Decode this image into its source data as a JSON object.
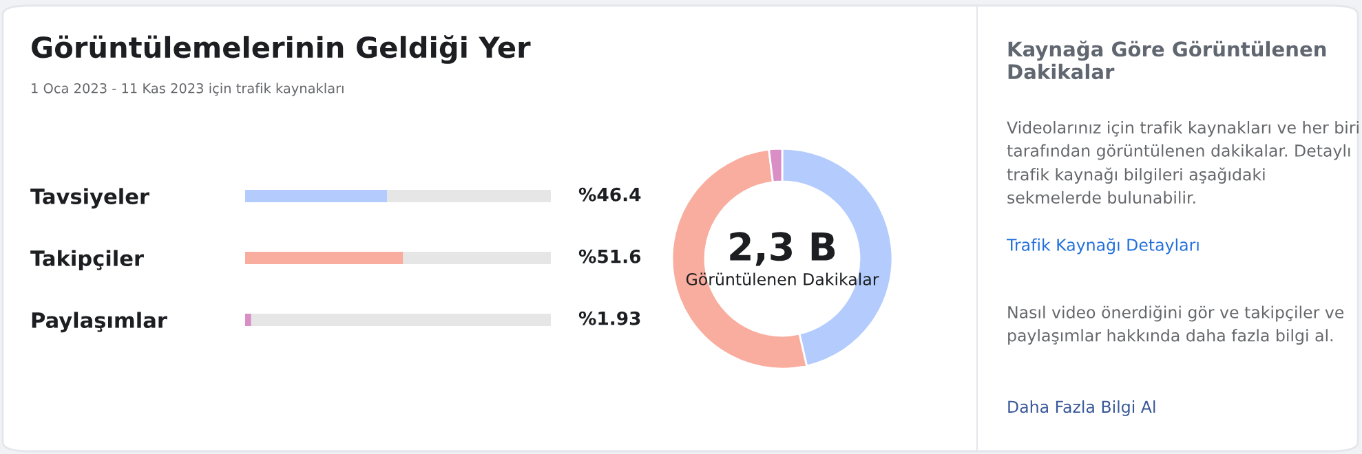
{
  "chart_data": [
    {
      "type": "bar",
      "orientation": "horizontal",
      "title": "Görüntülemelerinin Geldiği Yer",
      "subtitle": "1 Oca 2023 - 11 Kas 2023 için trafik kaynakları",
      "categories": [
        "Tavsiyeler",
        "Takipçiler",
        "Paylaşımlar"
      ],
      "values": [
        46.4,
        51.6,
        1.93
      ],
      "colors": [
        "#b3cbfd",
        "#f9ad9f",
        "#d98fc6"
      ],
      "value_labels": [
        "%46.4",
        "%51.6",
        "%1.93"
      ],
      "xlim": [
        0,
        100
      ],
      "tick_labels": "y",
      "grid": false,
      "legend": false
    },
    {
      "type": "donut",
      "values": [
        46.4,
        51.6,
        1.93
      ],
      "colors": [
        "#b3cbfd",
        "#f9ad9f",
        "#d98fc6"
      ],
      "annotations": [
        "2,3 B",
        "Görüntülenen Dakikalar"
      ],
      "legend": false
    },
    {
      "type": "other",
      "title": "Kaynağa Göre Görüntülenen Dakikalar",
      "annotations": [
        "Videolarınız için trafik kaynakları ve her biri tarafından görüntülenen dakikalar. Detaylı trafik kaynağı bilgileri aşağıdaki sekmelerde bulunabilir.",
        "Trafik Kaynağı Detayları",
        "Nasıl video önerdiğini gör ve takipçiler ve paylaşımlar hakkında daha fazla bilgi al.",
        "Daha Fazla Bilgi Al"
      ]
    }
  ]
}
